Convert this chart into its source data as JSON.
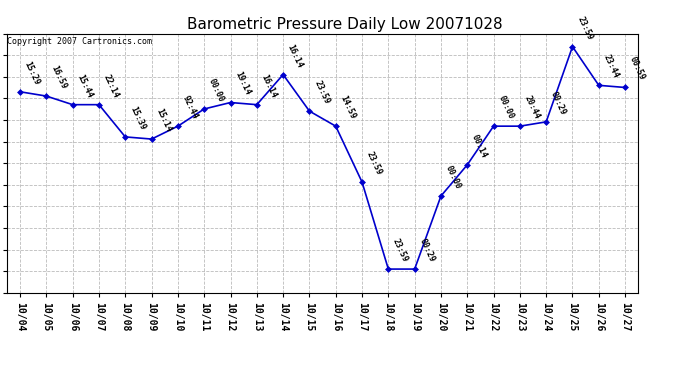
{
  "title": "Barometric Pressure Daily Low 20071028",
  "copyright": "Copyright 2007 Cartronics.com",
  "x_labels": [
    "10/04",
    "10/05",
    "10/06",
    "10/07",
    "10/08",
    "10/09",
    "10/10",
    "10/11",
    "10/12",
    "10/13",
    "10/14",
    "10/15",
    "10/16",
    "10/17",
    "10/18",
    "10/19",
    "10/20",
    "10/21",
    "10/22",
    "10/23",
    "10/24",
    "10/25",
    "10/26",
    "10/27"
  ],
  "times": [
    "15:29",
    "16:59",
    "15:44",
    "22:14",
    "15:39",
    "15:14",
    "92:44",
    "00:00",
    "19:14",
    "16:14",
    "16:14",
    "23:59",
    "14:59",
    "23:59",
    "23:59",
    "00:29",
    "00:00",
    "00:14",
    "00:00",
    "20:44",
    "00:29",
    "23:59",
    "23:44",
    "00:59"
  ],
  "values": [
    29.955,
    29.935,
    29.895,
    29.895,
    29.745,
    29.735,
    29.795,
    29.875,
    29.905,
    29.895,
    30.035,
    29.865,
    29.795,
    29.535,
    29.13,
    29.13,
    29.47,
    29.615,
    29.795,
    29.795,
    29.815,
    30.165,
    29.985,
    29.975
  ],
  "ylim": [
    29.021,
    30.225
  ],
  "yticks": [
    29.021,
    29.121,
    29.221,
    29.322,
    29.422,
    29.523,
    29.623,
    29.723,
    29.824,
    29.924,
    30.025,
    30.125,
    30.225
  ],
  "line_color": "#0000CC",
  "marker_color": "#0000CC",
  "bg_color": "#FFFFFF",
  "grid_color": "#AAAAAA",
  "title_fontsize": 11,
  "label_fontsize": 7
}
